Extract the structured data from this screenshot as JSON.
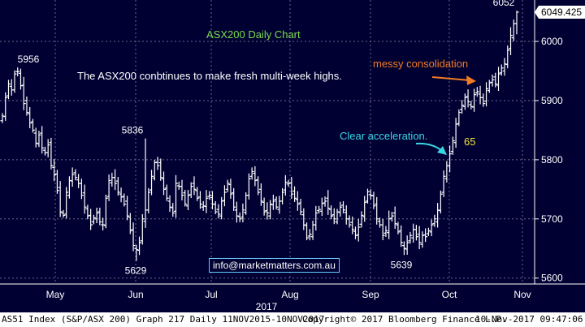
{
  "chart_data": {
    "type": "ohlc",
    "title": "ASX200 Daily Chart",
    "last_price_label": "6049.425",
    "ylim": [
      5590,
      6070
    ],
    "yticks": [
      5600,
      5700,
      5800,
      5900,
      6000
    ],
    "x_months": [
      "May",
      "Jun",
      "Jul",
      "Aug",
      "Sep",
      "Oct",
      "Nov"
    ],
    "x_year": "2017",
    "grid": true,
    "price_labels": [
      {
        "text": "5956",
        "value": 5956
      },
      {
        "text": "5836",
        "value": 5836
      },
      {
        "text": "5629",
        "value": 5629
      },
      {
        "text": "5639",
        "value": 5639
      },
      {
        "text": "6052",
        "value": 6052
      }
    ],
    "closes": [
      5874,
      5905,
      5928,
      5918,
      5945,
      5949,
      5925,
      5895,
      5880,
      5862,
      5850,
      5828,
      5842,
      5820,
      5812,
      5825,
      5790,
      5775,
      5748,
      5712,
      5706,
      5745,
      5765,
      5775,
      5770,
      5760,
      5740,
      5720,
      5705,
      5690,
      5702,
      5710,
      5695,
      5690,
      5735,
      5765,
      5770,
      5760,
      5745,
      5737,
      5725,
      5705,
      5680,
      5655,
      5648,
      5660,
      5700,
      5715,
      5745,
      5772,
      5795,
      5790,
      5770,
      5750,
      5735,
      5720,
      5710,
      5760,
      5755,
      5740,
      5725,
      5740,
      5755,
      5750,
      5735,
      5725,
      5722,
      5735,
      5740,
      5725,
      5712,
      5708,
      5730,
      5745,
      5760,
      5742,
      5720,
      5705,
      5700,
      5715,
      5740,
      5768,
      5780,
      5765,
      5745,
      5730,
      5712,
      5710,
      5725,
      5730,
      5720,
      5730,
      5745,
      5762,
      5760,
      5742,
      5735,
      5725,
      5712,
      5690,
      5668,
      5674,
      5690,
      5710,
      5716,
      5726,
      5730,
      5718,
      5705,
      5700,
      5712,
      5720,
      5715,
      5700,
      5690,
      5682,
      5672,
      5686,
      5706,
      5728,
      5746,
      5740,
      5722,
      5700,
      5690,
      5672,
      5680,
      5700,
      5705,
      5692,
      5678,
      5660,
      5650,
      5660,
      5672,
      5682,
      5670,
      5660,
      5672,
      5670,
      5680,
      5690,
      5700,
      5715,
      5742,
      5772,
      5790,
      5810,
      5832,
      5860,
      5880,
      5892,
      5905,
      5898,
      5890,
      5910,
      5915,
      5905,
      5895,
      5920,
      5930,
      5935,
      5928,
      5945,
      5955,
      5962,
      5985,
      6010,
      6030,
      6049.425
    ]
  },
  "annotations": {
    "subtitle": "The ASX200 conbtinues to make fresh multi-week highs.",
    "messy": "messy consolidation",
    "clear": "Clear acceleration.",
    "yellow_num": "65",
    "email": "info@marketmatters.com.au"
  },
  "colors": {
    "background": "#000033",
    "bars": "#ffffff",
    "grid": "#6a6a8a",
    "title": "#7ddb4a",
    "orange": "#f07b22",
    "cyan": "#3ad6e3",
    "yellow": "#f2e03a"
  },
  "footer": {
    "left": "AS51 Index (S&P/ASX 200) Graph 217  Daily 11NOV2015-10NOV2017",
    "copyright": "Copyright© 2017 Bloomberg Finance L.P.",
    "timestamp": "10-Nov-2017 09:47:06"
  }
}
